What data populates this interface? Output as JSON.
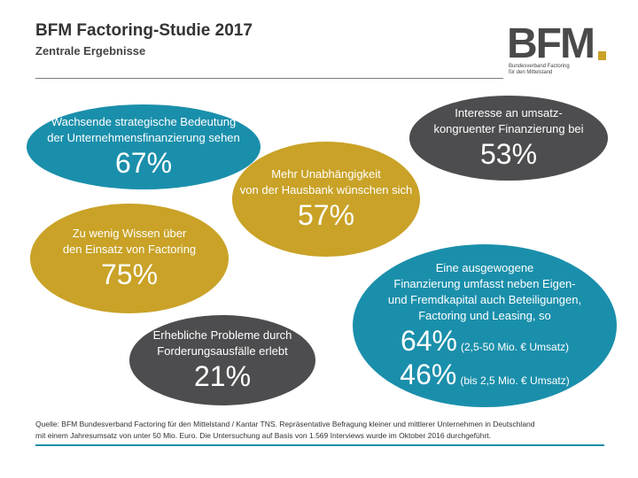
{
  "header": {
    "title": "BFM Factoring-Studie 2017",
    "subtitle": "Zentrale Ergebnisse"
  },
  "logo": {
    "letters": "BFM",
    "tagline_line1": "Bundesverband Factoring",
    "tagline_line2": "für den Mittelstand"
  },
  "colors": {
    "teal": "#1a8fab",
    "gold": "#c9a227",
    "grey": "#4d4d4f"
  },
  "bubbles": [
    {
      "line1": "Wachsende strategische Bedeutung",
      "line2": "der Unternehmensfinanzierung sehen",
      "value": "67%",
      "color": "teal"
    },
    {
      "line1": "Interesse an umsatz-",
      "line2": "kongruenter Finanzierung bei",
      "value": "53%",
      "color": "grey"
    },
    {
      "line1": "Mehr Unabhängigkeit",
      "line2": "von der Hausbank wünschen sich",
      "value": "57%",
      "color": "gold"
    },
    {
      "line1": "Zu wenig Wissen über",
      "line2": "den Einsatz von Factoring",
      "value": "75%",
      "color": "gold"
    },
    {
      "line1": "Erhebliche Probleme durch",
      "line2": "Forderungsausfälle erlebt",
      "value": "21%",
      "color": "grey"
    }
  ],
  "big_bubble": {
    "lines": [
      "Eine ausgewogene",
      "Finanzierung umfasst neben Eigen-",
      "und Fremdkapital auch Beteiligungen,",
      "Factoring und Leasing, so"
    ],
    "value1": "64%",
    "note1": "(2,5-50 Mio. € Umsatz)",
    "value2": "46%",
    "note2": "(bis 2,5 Mio. € Umsatz)",
    "color": "teal"
  },
  "source": {
    "line1": "Quelle: BFM Bundesverband Factoring für den Mittelstand / Kantar TNS. Repräsentative Befragung kleiner und mittlerer Unternehmen in Deutschland",
    "line2": "mit einem Jahresumsatz von unter 50 Mio. Euro. Die Untersuchung auf Basis von 1.569 Interviews wurde im Oktober 2016 durchgeführt."
  }
}
